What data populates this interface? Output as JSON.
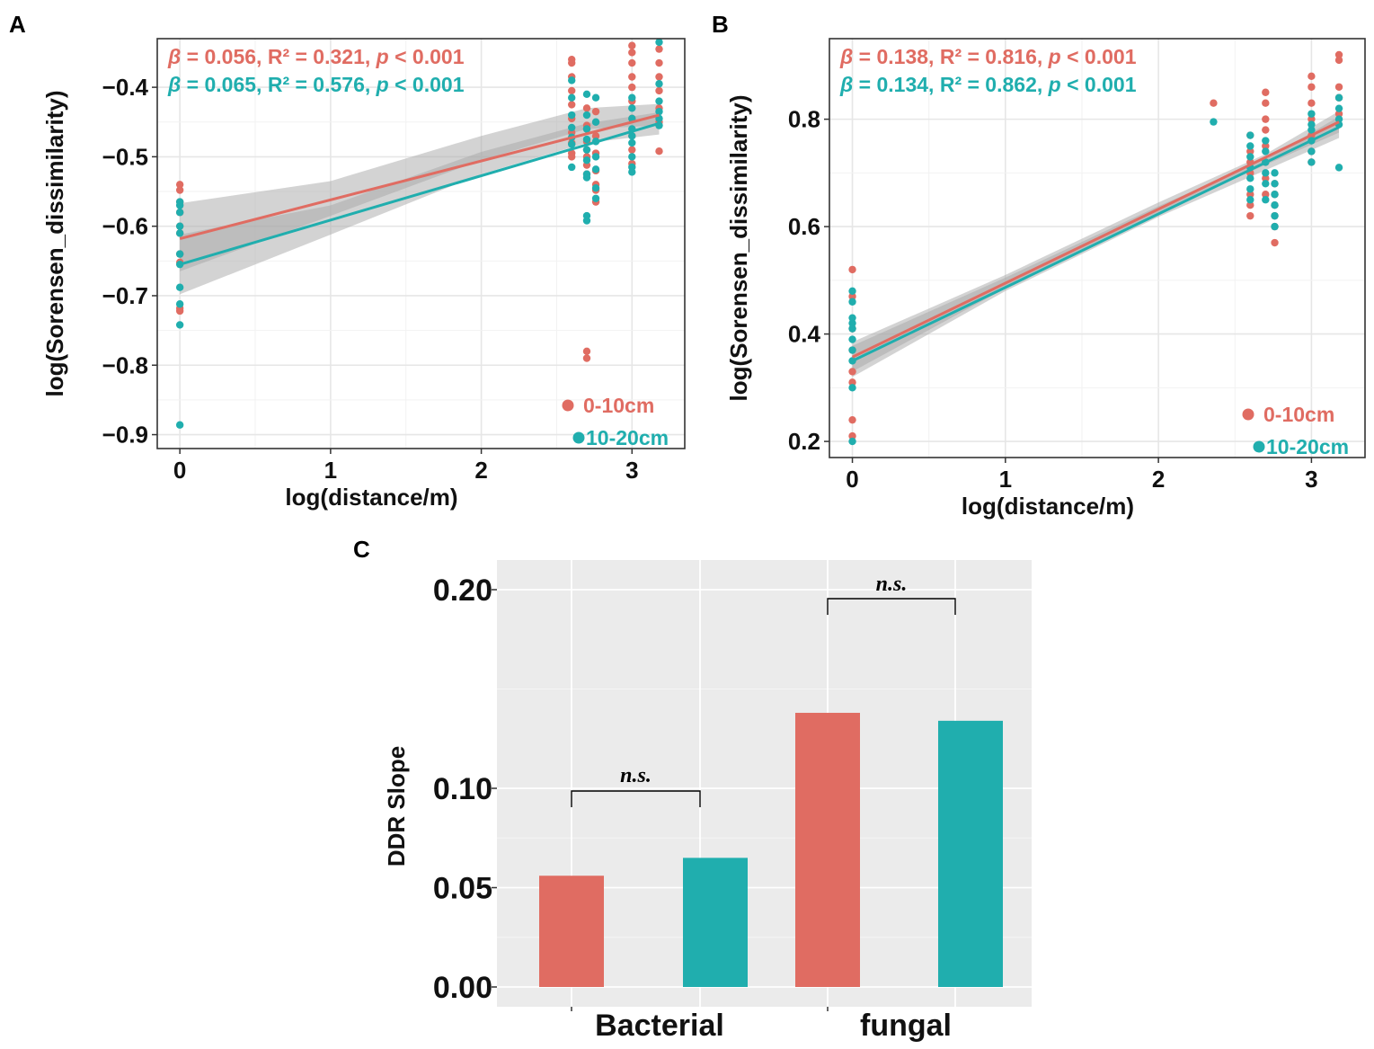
{
  "colors": {
    "depth1": "#E06C62",
    "depth2": "#20AEAE",
    "band": "#A8A8A8",
    "grid": "#E6E6E6",
    "panelC_bg": "#EBEBEB"
  },
  "chart_data": [
    {
      "panel": "A",
      "type": "scatter",
      "xlabel": "log(distance/m)",
      "ylabel": "log(Sorensen_dissimilarity)",
      "xlim": [
        -0.15,
        3.35
      ],
      "ylim": [
        -0.92,
        -0.33
      ],
      "xticks": [
        "0",
        "1",
        "2",
        "3"
      ],
      "yticks": [
        "−0.9",
        "−0.8",
        "−0.7",
        "−0.6",
        "−0.5",
        "−0.4"
      ],
      "xtick_values": [
        0,
        1,
        2,
        3
      ],
      "ytick_values": [
        -0.9,
        -0.8,
        -0.7,
        -0.6,
        -0.5,
        -0.4
      ],
      "stats": [
        {
          "beta": "β",
          "text": " = 0.056, R² = 0.321, ",
          "p": "p",
          "ptext": " < 0.001",
          "color": "#E06C62"
        },
        {
          "beta": "β",
          "text": " = 0.065, R² = 0.576, ",
          "p": "p",
          "ptext": " < 0.001",
          "color": "#20AEAE"
        }
      ],
      "legend": [
        {
          "label": "0-10cm",
          "color": "#E06C62"
        },
        {
          "label": "10-20cm",
          "color": "#20AEAE"
        }
      ],
      "series": [
        {
          "name": "0-10cm",
          "color": "#E06C62",
          "fit": {
            "x": [
              0,
              3.18
            ],
            "y": [
              -0.618,
              -0.44
            ]
          },
          "band": {
            "x": [
              0,
              1,
              2,
              2.7,
              3.18
            ],
            "lower": [
              -0.665,
              -0.585,
              -0.505,
              -0.46,
              -0.455
            ],
            "upper": [
              -0.567,
              -0.535,
              -0.47,
              -0.43,
              -0.424
            ]
          },
          "points": [
            [
              0,
              -0.54
            ],
            [
              0,
              -0.548
            ],
            [
              0,
              -0.565
            ],
            [
              0,
              -0.58
            ],
            [
              0,
              -0.6
            ],
            [
              0,
              -0.61
            ],
            [
              0,
              -0.64
            ],
            [
              0,
              -0.652
            ],
            [
              0,
              -0.718
            ],
            [
              0,
              -0.722
            ],
            [
              2.6,
              -0.36
            ],
            [
              2.6,
              -0.365
            ],
            [
              2.6,
              -0.385
            ],
            [
              2.6,
              -0.405
            ],
            [
              2.6,
              -0.425
            ],
            [
              2.6,
              -0.445
            ],
            [
              2.6,
              -0.465
            ],
            [
              2.6,
              -0.48
            ],
            [
              2.6,
              -0.495
            ],
            [
              2.6,
              -0.5
            ],
            [
              2.7,
              -0.43
            ],
            [
              2.7,
              -0.455
            ],
            [
              2.7,
              -0.46
            ],
            [
              2.7,
              -0.478
            ],
            [
              2.7,
              -0.49
            ],
            [
              2.7,
              -0.5
            ],
            [
              2.7,
              -0.512
            ],
            [
              2.7,
              -0.525
            ],
            [
              2.7,
              -0.78
            ],
            [
              2.7,
              -0.79
            ],
            [
              2.76,
              -0.435
            ],
            [
              2.76,
              -0.47
            ],
            [
              2.76,
              -0.495
            ],
            [
              2.76,
              -0.52
            ],
            [
              2.76,
              -0.54
            ],
            [
              2.76,
              -0.548
            ],
            [
              2.76,
              -0.565
            ],
            [
              3.0,
              -0.34
            ],
            [
              3.0,
              -0.35
            ],
            [
              3.0,
              -0.365
            ],
            [
              3.0,
              -0.385
            ],
            [
              3.0,
              -0.4
            ],
            [
              3.0,
              -0.42
            ],
            [
              3.0,
              -0.445
            ],
            [
              3.0,
              -0.47
            ],
            [
              3.0,
              -0.49
            ],
            [
              3.0,
              -0.51
            ],
            [
              3.18,
              -0.345
            ],
            [
              3.18,
              -0.365
            ],
            [
              3.18,
              -0.385
            ],
            [
              3.18,
              -0.405
            ],
            [
              3.18,
              -0.43
            ],
            [
              3.18,
              -0.45
            ],
            [
              3.18,
              -0.492
            ]
          ]
        },
        {
          "name": "10-20cm",
          "color": "#20AEAE",
          "fit": {
            "x": [
              0,
              3.18
            ],
            "y": [
              -0.655,
              -0.452
            ]
          },
          "band": {
            "x": [
              0,
              1,
              2,
              2.7,
              3.18
            ],
            "lower": [
              -0.698,
              -0.612,
              -0.525,
              -0.48,
              -0.468
            ],
            "upper": [
              -0.612,
              -0.57,
              -0.493,
              -0.452,
              -0.436
            ]
          },
          "points": [
            [
              0,
              -0.565
            ],
            [
              0,
              -0.57
            ],
            [
              0,
              -0.58
            ],
            [
              0,
              -0.6
            ],
            [
              0,
              -0.61
            ],
            [
              0,
              -0.64
            ],
            [
              0,
              -0.655
            ],
            [
              0,
              -0.688
            ],
            [
              0,
              -0.712
            ],
            [
              0,
              -0.742
            ],
            [
              0,
              -0.886
            ],
            [
              2.6,
              -0.39
            ],
            [
              2.6,
              -0.415
            ],
            [
              2.6,
              -0.44
            ],
            [
              2.6,
              -0.458
            ],
            [
              2.6,
              -0.472
            ],
            [
              2.6,
              -0.482
            ],
            [
              2.6,
              -0.515
            ],
            [
              2.7,
              -0.41
            ],
            [
              2.7,
              -0.44
            ],
            [
              2.7,
              -0.46
            ],
            [
              2.7,
              -0.475
            ],
            [
              2.7,
              -0.49
            ],
            [
              2.7,
              -0.505
            ],
            [
              2.7,
              -0.525
            ],
            [
              2.7,
              -0.53
            ],
            [
              2.7,
              -0.585
            ],
            [
              2.7,
              -0.592
            ],
            [
              2.76,
              -0.415
            ],
            [
              2.76,
              -0.45
            ],
            [
              2.76,
              -0.478
            ],
            [
              2.76,
              -0.5
            ],
            [
              2.76,
              -0.518
            ],
            [
              2.76,
              -0.545
            ],
            [
              2.76,
              -0.56
            ],
            [
              3.0,
              -0.415
            ],
            [
              3.0,
              -0.43
            ],
            [
              3.0,
              -0.445
            ],
            [
              3.0,
              -0.46
            ],
            [
              3.0,
              -0.47
            ],
            [
              3.0,
              -0.48
            ],
            [
              3.0,
              -0.5
            ],
            [
              3.0,
              -0.515
            ],
            [
              3.0,
              -0.522
            ],
            [
              3.18,
              -0.335
            ],
            [
              3.18,
              -0.395
            ],
            [
              3.18,
              -0.42
            ],
            [
              3.18,
              -0.435
            ],
            [
              3.18,
              -0.445
            ],
            [
              3.18,
              -0.455
            ]
          ]
        }
      ]
    },
    {
      "panel": "B",
      "type": "scatter",
      "xlabel": "log(distance/m)",
      "ylabel": "log(Sorensen_dissimilarity)",
      "xlim": [
        -0.15,
        3.35
      ],
      "ylim": [
        0.17,
        0.95
      ],
      "xticks": [
        "0",
        "1",
        "2",
        "3"
      ],
      "yticks": [
        "0.2",
        "0.4",
        "0.6",
        "0.8"
      ],
      "xtick_values": [
        0,
        1,
        2,
        3
      ],
      "ytick_values": [
        0.2,
        0.4,
        0.6,
        0.8
      ],
      "stats": [
        {
          "beta": "β",
          "text": " = 0.138, R² = 0.816, ",
          "p": "p",
          "ptext": " < 0.001",
          "color": "#E06C62"
        },
        {
          "beta": "β",
          "text": " = 0.134, R² = 0.862, ",
          "p": "p",
          "ptext": " < 0.001",
          "color": "#20AEAE"
        }
      ],
      "legend": [
        {
          "label": "0-10cm",
          "color": "#E06C62"
        },
        {
          "label": "10-20cm",
          "color": "#20AEAE"
        }
      ],
      "series": [
        {
          "name": "0-10cm",
          "color": "#E06C62",
          "fit": {
            "x": [
              0,
              3.18
            ],
            "y": [
              0.357,
              0.795
            ]
          },
          "band": {
            "x": [
              0,
              1,
              2,
              2.7,
              3.18
            ],
            "lower": [
              0.33,
              0.485,
              0.625,
              0.715,
              0.775
            ],
            "upper": [
              0.385,
              0.51,
              0.645,
              0.735,
              0.815
            ]
          },
          "points": [
            [
              0,
              0.52
            ],
            [
              0,
              0.47
            ],
            [
              0,
              0.41
            ],
            [
              0,
              0.37
            ],
            [
              0,
              0.33
            ],
            [
              0,
              0.31
            ],
            [
              0,
              0.24
            ],
            [
              0,
              0.21
            ],
            [
              2.36,
              0.83
            ],
            [
              2.6,
              0.62
            ],
            [
              2.6,
              0.64
            ],
            [
              2.6,
              0.66
            ],
            [
              2.6,
              0.7
            ],
            [
              2.6,
              0.72
            ],
            [
              2.6,
              0.74
            ],
            [
              2.6,
              0.77
            ],
            [
              2.7,
              0.85
            ],
            [
              2.7,
              0.83
            ],
            [
              2.7,
              0.8
            ],
            [
              2.7,
              0.78
            ],
            [
              2.7,
              0.75
            ],
            [
              2.7,
              0.72
            ],
            [
              2.7,
              0.69
            ],
            [
              2.7,
              0.66
            ],
            [
              2.76,
              0.57
            ],
            [
              2.76,
              0.6
            ],
            [
              2.76,
              0.62
            ],
            [
              2.76,
              0.64
            ],
            [
              2.76,
              0.66
            ],
            [
              2.76,
              0.68
            ],
            [
              3.0,
              0.88
            ],
            [
              3.0,
              0.86
            ],
            [
              3.0,
              0.83
            ],
            [
              3.0,
              0.8
            ],
            [
              3.0,
              0.77
            ],
            [
              3.0,
              0.74
            ],
            [
              3.0,
              0.72
            ],
            [
              3.18,
              0.92
            ],
            [
              3.18,
              0.91
            ],
            [
              3.18,
              0.86
            ],
            [
              3.18,
              0.84
            ],
            [
              3.18,
              0.81
            ]
          ]
        },
        {
          "name": "10-20cm",
          "color": "#20AEAE",
          "fit": {
            "x": [
              0,
              3.18
            ],
            "y": [
              0.35,
              0.785
            ]
          },
          "band": {
            "x": [
              0,
              1,
              2,
              2.7,
              3.18
            ],
            "lower": [
              0.32,
              0.48,
              0.618,
              0.705,
              0.765
            ],
            "upper": [
              0.378,
              0.505,
              0.638,
              0.725,
              0.805
            ]
          },
          "points": [
            [
              0,
              0.48
            ],
            [
              0,
              0.46
            ],
            [
              0,
              0.43
            ],
            [
              0,
              0.42
            ],
            [
              0,
              0.41
            ],
            [
              0,
              0.39
            ],
            [
              0,
              0.37
            ],
            [
              0,
              0.35
            ],
            [
              0,
              0.3
            ],
            [
              0,
              0.2
            ],
            [
              2.36,
              0.795
            ],
            [
              2.6,
              0.77
            ],
            [
              2.6,
              0.75
            ],
            [
              2.6,
              0.73
            ],
            [
              2.6,
              0.71
            ],
            [
              2.6,
              0.69
            ],
            [
              2.6,
              0.67
            ],
            [
              2.6,
              0.65
            ],
            [
              2.7,
              0.76
            ],
            [
              2.7,
              0.74
            ],
            [
              2.7,
              0.72
            ],
            [
              2.7,
              0.7
            ],
            [
              2.7,
              0.68
            ],
            [
              2.7,
              0.65
            ],
            [
              2.76,
              0.7
            ],
            [
              2.76,
              0.68
            ],
            [
              2.76,
              0.66
            ],
            [
              2.76,
              0.64
            ],
            [
              2.76,
              0.62
            ],
            [
              2.76,
              0.6
            ],
            [
              3.0,
              0.81
            ],
            [
              3.0,
              0.79
            ],
            [
              3.0,
              0.78
            ],
            [
              3.0,
              0.76
            ],
            [
              3.0,
              0.74
            ],
            [
              3.0,
              0.72
            ],
            [
              3.18,
              0.84
            ],
            [
              3.18,
              0.82
            ],
            [
              3.18,
              0.8
            ],
            [
              3.18,
              0.79
            ],
            [
              3.18,
              0.71
            ]
          ]
        }
      ]
    },
    {
      "panel": "C",
      "type": "bar",
      "ylabel": "DDR Slope",
      "categories": [
        "Bacterial",
        "fungal"
      ],
      "ylim": [
        0,
        0.21
      ],
      "yticks": [
        "0.00",
        "0.05",
        "0.10",
        "0.20"
      ],
      "ytick_values": [
        0,
        0.05,
        0.1,
        0.2
      ],
      "series": [
        {
          "name": "0-10cm",
          "color": "#E06C62",
          "values": [
            0.056,
            0.138
          ]
        },
        {
          "name": "10-20cm",
          "color": "#20AEAE",
          "values": [
            0.065,
            0.134
          ]
        }
      ],
      "significance": [
        "n.s.",
        "n.s."
      ]
    }
  ]
}
